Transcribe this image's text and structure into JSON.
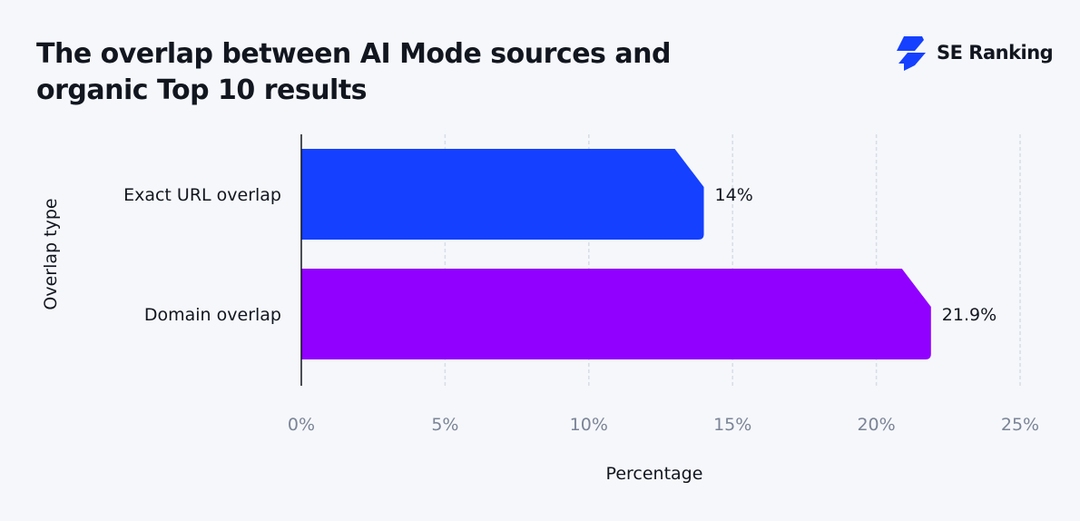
{
  "title": "The overlap between AI Mode sources and organic Top 10 results",
  "logo": {
    "text": "SE Ranking",
    "color": "#1540ff"
  },
  "chart_data": {
    "type": "bar",
    "orientation": "horizontal",
    "categories": [
      "Exact URL overlap",
      "Domain overlap"
    ],
    "values": [
      14,
      21.9
    ],
    "data_labels": [
      "14%",
      "21.9%"
    ],
    "colors": [
      "#1540ff",
      "#9100ff"
    ],
    "xlabel": "Percentage",
    "ylabel": "Overlap type",
    "xlim": [
      0,
      25
    ],
    "x_ticks": [
      0,
      5,
      10,
      15,
      20,
      25
    ],
    "x_tick_labels": [
      "0%",
      "5%",
      "10%",
      "15%",
      "20%",
      "25%"
    ],
    "grid": true
  }
}
